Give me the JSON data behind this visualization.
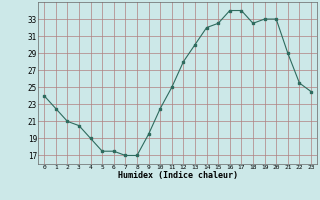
{
  "x": [
    0,
    1,
    2,
    3,
    4,
    5,
    6,
    7,
    8,
    9,
    10,
    11,
    12,
    13,
    14,
    15,
    16,
    17,
    18,
    19,
    20,
    21,
    22,
    23
  ],
  "y": [
    24.0,
    22.5,
    21.0,
    20.5,
    19.0,
    17.5,
    17.5,
    17.0,
    17.0,
    19.5,
    22.5,
    25.0,
    28.0,
    30.0,
    32.0,
    32.5,
    34.0,
    34.0,
    32.5,
    33.0,
    33.0,
    29.0,
    25.5,
    24.5
  ],
  "xlabel": "Humidex (Indice chaleur)",
  "xlim": [
    -0.5,
    23.5
  ],
  "ylim": [
    16,
    35
  ],
  "yticks": [
    17,
    19,
    21,
    23,
    25,
    27,
    29,
    31,
    33
  ],
  "xticks": [
    0,
    1,
    2,
    3,
    4,
    5,
    6,
    7,
    8,
    9,
    10,
    11,
    12,
    13,
    14,
    15,
    16,
    17,
    18,
    19,
    20,
    21,
    22,
    23
  ],
  "line_color": "#2e6b5e",
  "bg_color": "#cce8e8",
  "grid_color": "#b08080",
  "fig_bg": "#cce8e8"
}
